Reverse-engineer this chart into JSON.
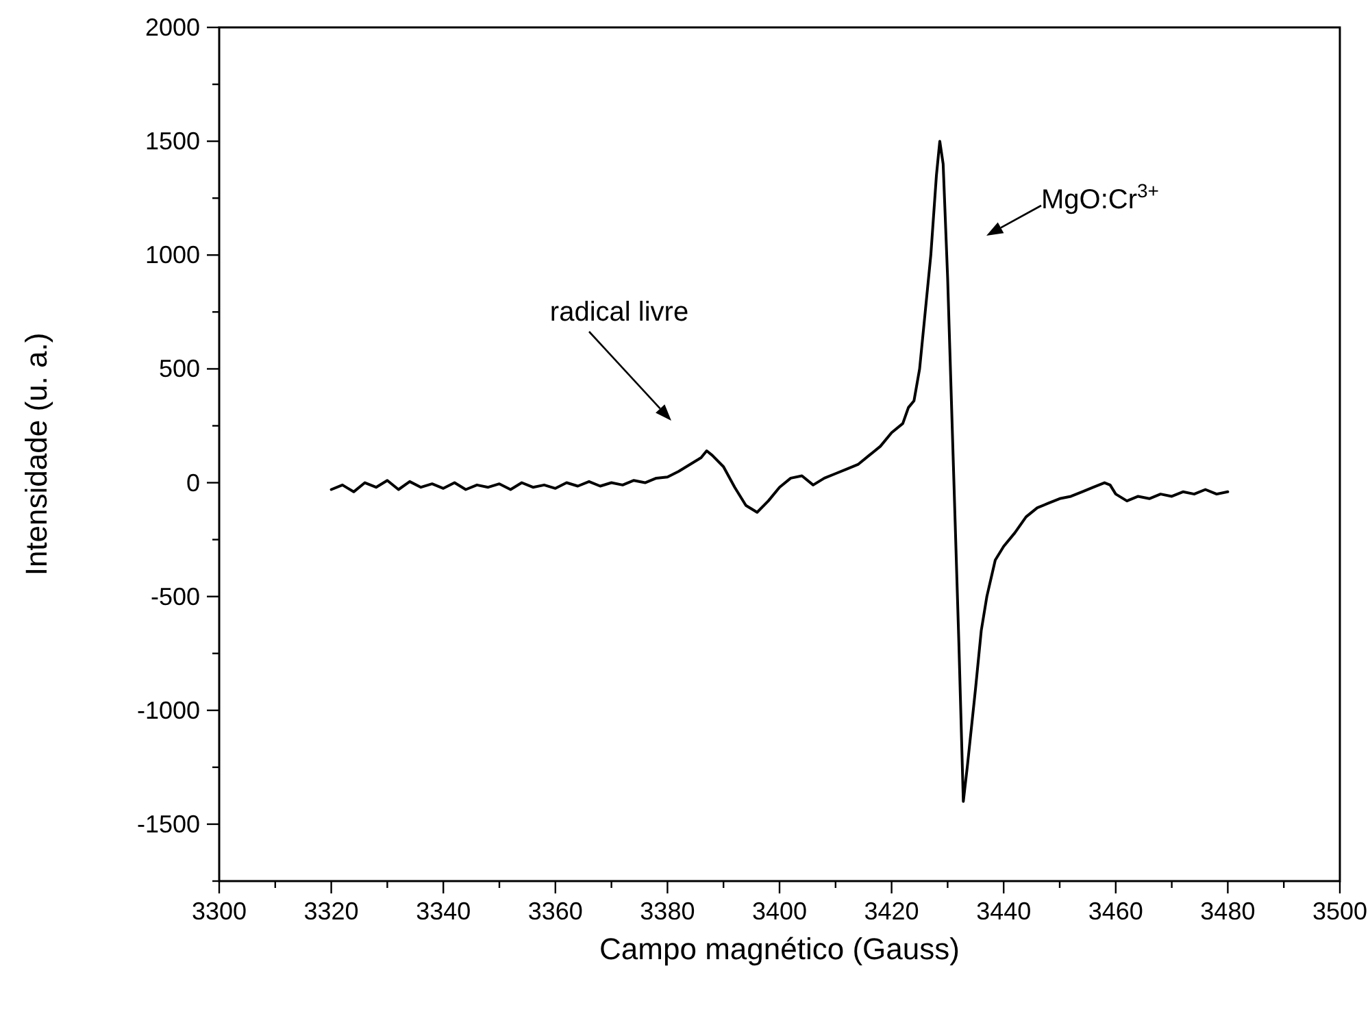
{
  "chart_data": {
    "type": "line",
    "xlabel": "Campo magnético (Gauss)",
    "ylabel": "Intensidade (u. a.)",
    "xlim": [
      3300,
      3500
    ],
    "ylim": [
      -1750,
      2000
    ],
    "xticks": [
      3300,
      {
        "value": 3310,
        "label": null
      },
      3320,
      {
        "value": 3330,
        "label": null
      },
      3340,
      {
        "value": 3350,
        "label": null
      },
      3360,
      {
        "value": 3370,
        "label": null
      },
      3380,
      {
        "value": 3390,
        "label": null
      },
      3400,
      {
        "value": 3410,
        "label": null
      },
      3420,
      {
        "value": 3430,
        "label": null
      },
      3440,
      {
        "value": 3450,
        "label": null
      },
      3460,
      {
        "value": 3470,
        "label": null
      },
      3480,
      {
        "value": 3490,
        "label": null
      },
      3500
    ],
    "yticks": [
      {
        "value": -1750,
        "label": null
      },
      -1500,
      {
        "value": -1250,
        "label": null
      },
      -1000,
      {
        "value": -750,
        "label": null
      },
      -500,
      {
        "value": -250,
        "label": null
      },
      0,
      {
        "value": 250,
        "label": null
      },
      500,
      {
        "value": 750,
        "label": null
      },
      1000,
      {
        "value": 1250,
        "label": null
      },
      1500,
      {
        "value": 1750,
        "label": null
      },
      2000
    ],
    "grid": false,
    "line_style": "solid",
    "annotations": [
      "radical livre",
      "MgO:Cr$^{3+}$"
    ],
    "series": [
      {
        "color": "#000000",
        "x": [
          3320,
          3322,
          3324,
          3326,
          3328,
          3330,
          3332,
          3334,
          3336,
          3338,
          3340,
          3342,
          3344,
          3346,
          3348,
          3350,
          3352,
          3354,
          3356,
          3358,
          3360,
          3362,
          3364,
          3366,
          3368,
          3370,
          3372,
          3374,
          3376,
          3378,
          3380,
          3382,
          3384,
          3386,
          3387,
          3388,
          3390,
          3392,
          3394,
          3396,
          3398,
          3400,
          3402,
          3404,
          3406,
          3408,
          3410,
          3412,
          3414,
          3416,
          3418,
          3420,
          3422,
          3423,
          3424,
          3425,
          3426,
          3427,
          3428,
          3428.6,
          3429.2,
          3430,
          3431,
          3432,
          3432.8,
          3433.5,
          3435,
          3436,
          3437,
          3438.5,
          3440,
          3442,
          3444,
          3446,
          3448,
          3450,
          3452,
          3454,
          3456,
          3458,
          3459,
          3460,
          3462,
          3464,
          3466,
          3468,
          3470,
          3472,
          3474,
          3476,
          3478,
          3480
        ],
        "values": [
          -30,
          -10,
          -40,
          0,
          -20,
          10,
          -30,
          5,
          -20,
          -5,
          -25,
          0,
          -30,
          -10,
          -20,
          -5,
          -30,
          0,
          -20,
          -10,
          -25,
          0,
          -15,
          5,
          -15,
          0,
          -10,
          10,
          0,
          20,
          25,
          50,
          80,
          110,
          140,
          120,
          70,
          -20,
          -100,
          -130,
          -80,
          -20,
          20,
          30,
          -10,
          20,
          40,
          60,
          80,
          120,
          160,
          220,
          260,
          330,
          360,
          500,
          750,
          1000,
          1350,
          1500,
          1400,
          900,
          100,
          -700,
          -1400,
          -1250,
          -900,
          -650,
          -500,
          -340,
          -280,
          -220,
          -150,
          -110,
          -90,
          -70,
          -60,
          -40,
          -20,
          0,
          -10,
          -50,
          -80,
          -60,
          -70,
          -50,
          -60,
          -40,
          -50,
          -30,
          -50,
          -40
        ]
      }
    ]
  }
}
